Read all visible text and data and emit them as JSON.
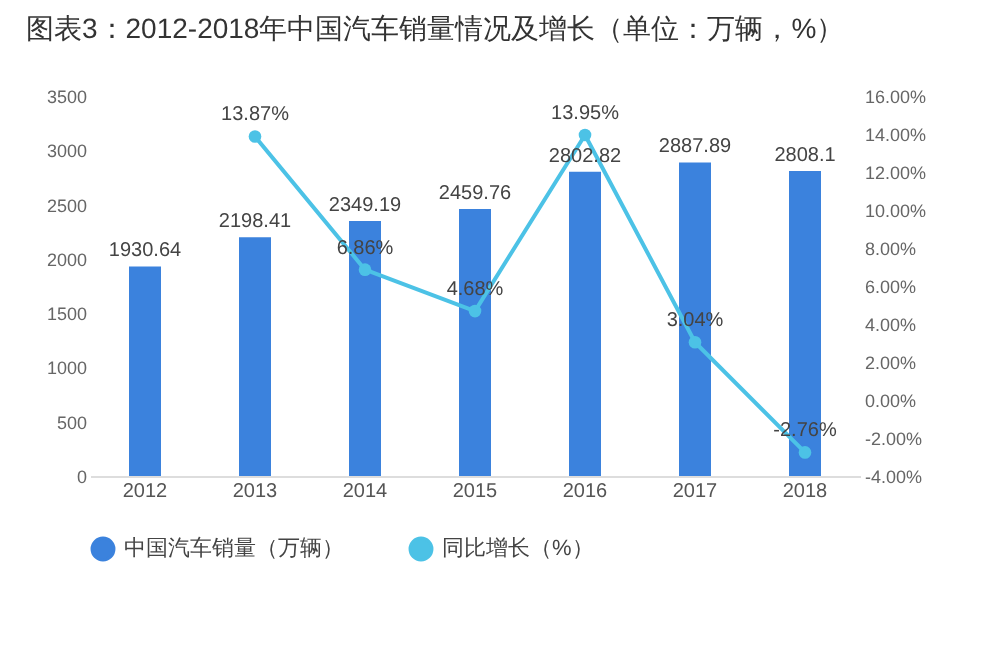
{
  "chart_data": {
    "type": "bar",
    "title": "图表3：2012-2018年中国汽车销量情况及增长（单位：万辆，%）",
    "categories": [
      "2012",
      "2013",
      "2014",
      "2015",
      "2016",
      "2017",
      "2018"
    ],
    "series": [
      {
        "name": "中国汽车销量（万辆）",
        "color": "#3b82dd",
        "values": [
          1930.64,
          2198.41,
          2349.19,
          2459.76,
          2802.82,
          2887.89,
          2808.1
        ],
        "value_labels": [
          "1930.64",
          "2198.41",
          "2349.19",
          "2459.76",
          "2802.82",
          "2887.89",
          "2808.1"
        ]
      },
      {
        "name": "同比增长（%）",
        "type": "line",
        "axis": "y2",
        "color": "#4cc2e6",
        "values": [
          null,
          13.87,
          6.86,
          4.68,
          13.95,
          3.04,
          -2.76
        ],
        "value_labels": [
          null,
          "13.87%",
          "6.86%",
          "4.68%",
          "13.95%",
          "3.04%",
          "-2.76%"
        ]
      }
    ],
    "ylim": [
      0,
      3500
    ],
    "yticks": [
      0,
      500,
      1000,
      1500,
      2000,
      2500,
      3000,
      3500
    ],
    "y2lim": [
      -4,
      16
    ],
    "y2ticks": [
      {
        "value": -4,
        "label": "-4.00%"
      },
      {
        "value": -2,
        "label": "-2.00%"
      },
      {
        "value": 0,
        "label": "0.00%"
      },
      {
        "value": 2,
        "label": "2.00%"
      },
      {
        "value": 4,
        "label": "4.00%"
      },
      {
        "value": 6,
        "label": "6.00%"
      },
      {
        "value": 8,
        "label": "8.00%"
      },
      {
        "value": 10,
        "label": "10.00%"
      },
      {
        "value": 12,
        "label": "12.00%"
      },
      {
        "value": 14,
        "label": "14.00%"
      },
      {
        "value": 16,
        "label": "16.00%"
      }
    ],
    "marker": "circle",
    "line_style": "solid",
    "legend": "bottom"
  }
}
